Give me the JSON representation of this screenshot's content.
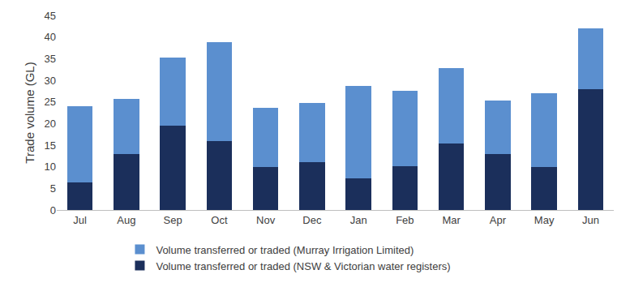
{
  "chart_data": {
    "type": "bar",
    "stacked": true,
    "y_label": "Trade volume (GL)",
    "categories": [
      "Jul",
      "Aug",
      "Sep",
      "Oct",
      "Nov",
      "Dec",
      "Jan",
      "Feb",
      "Mar",
      "Apr",
      "May",
      "Jun"
    ],
    "series": [
      {
        "name": "Volume transferred or traded (NSW & Victorian water registers)",
        "color": "#1b2f5b",
        "values": [
          6.3,
          13.0,
          19.5,
          15.9,
          9.9,
          11.1,
          7.4,
          10.2,
          15.3,
          13.0,
          9.9,
          27.9
        ]
      },
      {
        "name": "Volume transferred or traded (Murray Irrigation Limited)",
        "color": "#5b8fcf",
        "values": [
          17.7,
          12.6,
          15.7,
          22.9,
          13.7,
          13.7,
          21.2,
          17.3,
          17.5,
          12.3,
          17.1,
          14.1
        ]
      }
    ],
    "ylim": [
      0,
      45
    ],
    "yticks": [
      0,
      5,
      10,
      15,
      20,
      25,
      30,
      35,
      40,
      45
    ],
    "grid": false,
    "legend": "bottom"
  }
}
